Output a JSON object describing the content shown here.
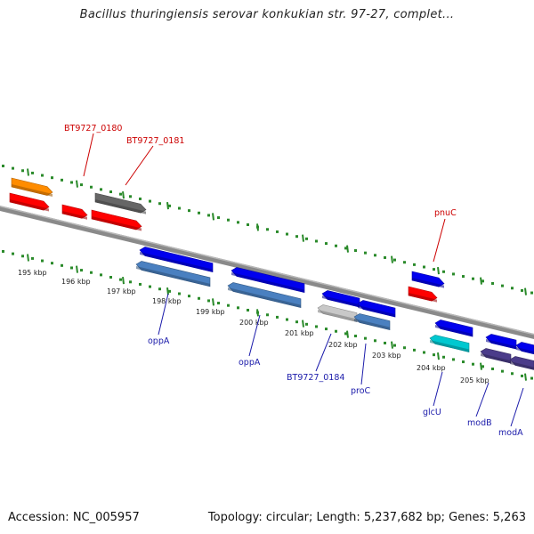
{
  "title": "Bacillus thuringiensis serovar konkukian str. 97-27, complet...",
  "footer": {
    "accession": "Accession: NC_005957",
    "topology": "Topology: circular; Length: 5,237,682 bp; Genes: 5,263"
  },
  "colors": {
    "backbone": "#8a8a8a",
    "ruler": "#2a8a2a",
    "kbp_label": "#222222",
    "gene_label_red": "#cc0000",
    "gene_label_blue": "#1a1aaa"
  },
  "ruler_labels": [
    "195 kbp",
    "196 kbp",
    "197 kbp",
    "198 kbp",
    "199 kbp",
    "200 kbp",
    "201 kbp",
    "202 kbp",
    "203 kbp",
    "204 kbp",
    "205 kbp"
  ],
  "genes": [
    {
      "color": "#ff8c00",
      "strand": "plus"
    },
    {
      "color": "#ff0000",
      "strand": "plus"
    },
    {
      "color": "#ff0000",
      "strand": "plus"
    },
    {
      "color": "#666666",
      "strand": "plus"
    },
    {
      "color": "#ff0000",
      "strand": "plus"
    },
    {
      "color": "#0000ee",
      "strand": "minus"
    },
    {
      "color": "#4a80c0",
      "strand": "minus"
    },
    {
      "color": "#0000ee",
      "strand": "minus"
    },
    {
      "color": "#4a80c0",
      "strand": "minus"
    },
    {
      "color": "#0000ee",
      "strand": "minus"
    },
    {
      "color": "#c8c8c8",
      "strand": "minus"
    },
    {
      "color": "#0000ee",
      "strand": "minus"
    },
    {
      "color": "#4a80c0",
      "strand": "minus"
    },
    {
      "color": "#0000ee",
      "strand": "plus"
    },
    {
      "color": "#ff0000",
      "strand": "plus"
    },
    {
      "color": "#0000ee",
      "strand": "minus"
    },
    {
      "color": "#00c8d0",
      "strand": "minus"
    },
    {
      "color": "#0000ee",
      "strand": "minus"
    },
    {
      "color": "#4b3c8a",
      "strand": "minus"
    },
    {
      "color": "#0000ee",
      "strand": "minus"
    },
    {
      "color": "#4b3c8a",
      "strand": "minus"
    }
  ],
  "gene_labels": [
    {
      "text": "BT9727_0180",
      "group": "red"
    },
    {
      "text": "BT9727_0181",
      "group": "red"
    },
    {
      "text": "pnuC",
      "group": "red"
    },
    {
      "text": "oppA",
      "group": "blue"
    },
    {
      "text": "oppA",
      "group": "blue"
    },
    {
      "text": "BT9727_0184",
      "group": "blue"
    },
    {
      "text": "proC",
      "group": "blue"
    },
    {
      "text": "glcU",
      "group": "blue"
    },
    {
      "text": "modB",
      "group": "blue"
    },
    {
      "text": "modA",
      "group": "blue"
    }
  ]
}
